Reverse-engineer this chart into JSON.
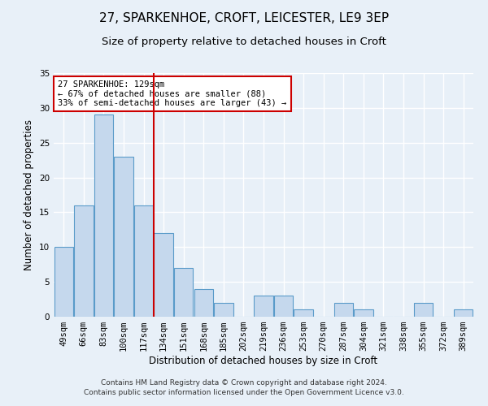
{
  "title": "27, SPARKENHOE, CROFT, LEICESTER, LE9 3EP",
  "subtitle": "Size of property relative to detached houses in Croft",
  "xlabel": "Distribution of detached houses by size in Croft",
  "ylabel": "Number of detached properties",
  "bar_color": "#c5d8ed",
  "bar_edge_color": "#5a9bc9",
  "background_color": "#e8f0f8",
  "grid_color": "#ffffff",
  "categories": [
    "49sqm",
    "66sqm",
    "83sqm",
    "100sqm",
    "117sqm",
    "134sqm",
    "151sqm",
    "168sqm",
    "185sqm",
    "202sqm",
    "219sqm",
    "236sqm",
    "253sqm",
    "270sqm",
    "287sqm",
    "304sqm",
    "321sqm",
    "338sqm",
    "355sqm",
    "372sqm",
    "389sqm"
  ],
  "values": [
    10,
    16,
    29,
    23,
    16,
    12,
    7,
    4,
    2,
    0,
    3,
    3,
    1,
    0,
    2,
    1,
    0,
    0,
    2,
    0,
    1
  ],
  "ylim": [
    0,
    35
  ],
  "yticks": [
    0,
    5,
    10,
    15,
    20,
    25,
    30,
    35
  ],
  "vline_x": 4.5,
  "vline_color": "#cc0000",
  "annotation_text": "27 SPARKENHOE: 129sqm\n← 67% of detached houses are smaller (88)\n33% of semi-detached houses are larger (43) →",
  "annotation_box_color": "#ffffff",
  "annotation_box_edge_color": "#cc0000",
  "footer_text": "Contains HM Land Registry data © Crown copyright and database right 2024.\nContains public sector information licensed under the Open Government Licence v3.0.",
  "title_fontsize": 11,
  "subtitle_fontsize": 9.5,
  "axis_fontsize": 8.5,
  "tick_fontsize": 7.5,
  "annotation_fontsize": 7.5,
  "footer_fontsize": 6.5
}
